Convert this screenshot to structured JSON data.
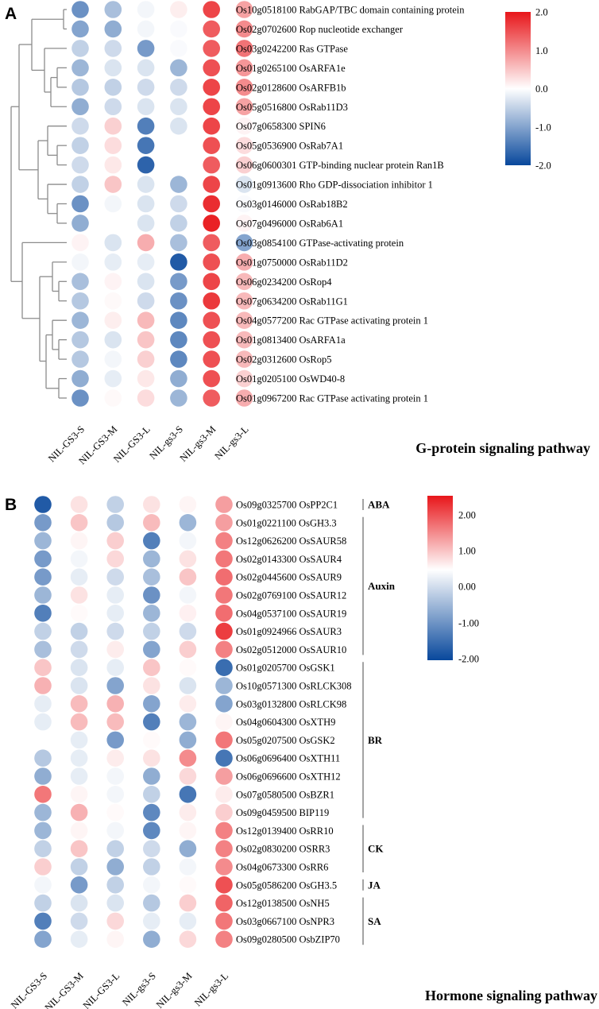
{
  "colors": {
    "low": "#08489c",
    "mid": "#ffffff",
    "high": "#e8161a",
    "dendrogram": "#8c8c8c",
    "group_line": "#666666"
  },
  "chart_data": [
    {
      "type": "heatmap",
      "panel": "A",
      "title": "G-protein signaling pathway",
      "columns": [
        "NIL-GS3-S",
        "NIL-GS3-M",
        "NIL-GS3-L",
        "NIL-gs3-S",
        "NIL-gs3-M",
        "NIL-gs3-L"
      ],
      "rows": [
        "Os10g0518100 RabGAP/TBC domain containing protein",
        "Os02g0702600 Rop nucleotide exchanger",
        "Os03g0242200 Ras GTPase",
        "Os01g0265100 OsARFA1e",
        "Os02g0128600 OsARFB1b",
        "Os05g0516800 OsRab11D3",
        "Os07g0658300 SPIN6",
        "Os05g0536900 OsRab7A1",
        "Os06g0600301 GTP-binding nuclear protein Ran1B",
        "Os01g0913600 Rho GDP-dissociation inhibitor 1",
        "Os03g0146000 OsRab18B2",
        "Os07g0496000 OsRab6A1",
        "Os03g0854100 GTPase-activating protein",
        "Os01g0750000 OsRab11D2",
        "Os06g0234200 OsRop4",
        "Os07g0634200 OsRab11G1",
        "Os04g0577200 Rac GTPase activating protein 1",
        "Os01g0813400 OsARFA1a",
        "Os02g0312600 OsRop5",
        "Os01g0205100 OsWD40-8",
        "Os01g0967200 Rac GTPase activating protein 1"
      ],
      "values": [
        [
          -1.2,
          -0.7,
          -0.1,
          0.15,
          1.6,
          0.8
        ],
        [
          -1.0,
          -0.9,
          -0.1,
          -0.05,
          1.4,
          1.0
        ],
        [
          -0.5,
          -0.4,
          -1.1,
          -0.05,
          1.4,
          1.2
        ],
        [
          -0.8,
          -0.3,
          -0.3,
          -0.8,
          1.5,
          0.9
        ],
        [
          -0.6,
          -0.5,
          -0.4,
          -0.4,
          1.6,
          1.0
        ],
        [
          -0.9,
          -0.4,
          -0.3,
          -0.3,
          1.6,
          0.8
        ],
        [
          -0.4,
          0.4,
          -1.4,
          -0.3,
          1.6,
          0.1
        ],
        [
          -0.5,
          0.3,
          -1.5,
          0.0,
          1.5,
          0.3
        ],
        [
          -0.4,
          0.2,
          -1.7,
          0.0,
          1.4,
          0.4
        ],
        [
          -0.5,
          0.5,
          -0.3,
          -0.8,
          1.6,
          -0.3
        ],
        [
          -1.2,
          -0.1,
          -0.3,
          -0.4,
          1.8,
          -0.05
        ],
        [
          -0.9,
          0.0,
          -0.3,
          -0.5,
          1.9,
          0.1
        ],
        [
          0.1,
          -0.3,
          0.7,
          -0.7,
          1.4,
          -1.0
        ],
        [
          -0.1,
          -0.2,
          -0.2,
          -1.8,
          1.5,
          0.7
        ],
        [
          -0.7,
          0.1,
          -0.3,
          -1.1,
          1.6,
          0.6
        ],
        [
          -0.6,
          0.05,
          -0.4,
          -1.2,
          1.7,
          0.6
        ],
        [
          -0.8,
          0.15,
          0.6,
          -1.3,
          1.5,
          0.6
        ],
        [
          -0.6,
          -0.3,
          0.5,
          -1.3,
          1.5,
          0.6
        ],
        [
          -0.6,
          -0.1,
          0.4,
          -1.3,
          1.5,
          0.6
        ],
        [
          -0.9,
          -0.2,
          0.2,
          -0.9,
          1.5,
          0.4
        ],
        [
          -1.2,
          0.05,
          0.3,
          -0.8,
          1.4,
          0.7
        ]
      ],
      "colorbar": {
        "range": [
          -2.0,
          2.0
        ],
        "ticks": [
          "2.0",
          "1.0",
          "0.0",
          "-1.0",
          "-2.0"
        ]
      },
      "dendrogram": "row clustering (left)"
    },
    {
      "type": "heatmap",
      "panel": "B",
      "title": "Hormone signaling pathway",
      "columns": [
        "NIL-GS3-S",
        "NIL-GS3-M",
        "NIL-GS3-L",
        "NIL-gs3-S",
        "NIL-gs3-M",
        "NIL-gs3-L"
      ],
      "rows": [
        "Os09g0325700 OsPP2C1",
        "Os01g0221100 OsGH3.3",
        "Os12g0626200 OsSAUR58",
        "Os02g0143300 OsSAUR4",
        "Os02g0445600 OsSAUR9",
        "Os02g0769100 OsSAUR12",
        "Os04g0537100 OsSAUR19",
        "Os01g0924966 OsSAUR3",
        "Os02g0512000 OsSAUR10",
        "Os01g0205700 OsGSK1",
        "Os10g0571300 OsRLCK308",
        "Os03g0132800 OsRLCK98",
        "Os04g0604300 OsXTH9",
        "Os05g0207500 OsGSK2",
        "Os06g0696400 OsXTH11",
        "Os06g0696600 OsXTH12",
        "Os07g0580500 OsBZR1",
        "Os09g0459500 BIP119",
        "Os12g0139400 OsRR10",
        "Os02g0830200 OSRR3",
        "Os04g0673300 OsRR6",
        "Os05g0586200 OsGH3.5",
        "Os12g0138500 OsNH5",
        "Os03g0667100 OsNPR3",
        "Os09g0280500 OsbZIP70"
      ],
      "values": [
        [
          -1.8,
          0.3,
          -0.5,
          0.3,
          0.1,
          1.0
        ],
        [
          -1.1,
          0.6,
          -0.6,
          0.7,
          -0.8,
          1.0
        ],
        [
          -0.8,
          0.1,
          0.5,
          -1.4,
          -0.1,
          1.3
        ],
        [
          -1.1,
          -0.1,
          0.4,
          -0.8,
          0.3,
          1.4
        ],
        [
          -1.1,
          -0.2,
          -0.4,
          -0.7,
          0.6,
          1.5
        ],
        [
          -0.8,
          0.3,
          -0.2,
          -1.2,
          -0.1,
          1.4
        ],
        [
          -1.4,
          0.05,
          -0.2,
          -0.8,
          0.15,
          1.5
        ],
        [
          -0.5,
          -0.5,
          -0.4,
          -0.5,
          -0.4,
          2.0
        ],
        [
          -0.7,
          -0.4,
          0.2,
          -1.0,
          0.5,
          1.3
        ],
        [
          0.6,
          -0.3,
          -0.2,
          0.6,
          0.05,
          -1.6
        ],
        [
          0.8,
          -0.3,
          -1.0,
          0.3,
          -0.3,
          -0.8
        ],
        [
          -0.2,
          0.7,
          0.8,
          -1.0,
          0.2,
          -1.0
        ],
        [
          -0.2,
          0.7,
          0.7,
          -1.4,
          -0.8,
          0.1
        ],
        [
          0.0,
          -0.2,
          -1.1,
          0.05,
          -0.9,
          1.4
        ],
        [
          -0.6,
          -0.2,
          0.2,
          0.3,
          1.2,
          -1.5
        ],
        [
          -0.9,
          -0.2,
          -0.1,
          -0.9,
          0.4,
          1.0
        ],
        [
          1.4,
          0.1,
          -0.1,
          -0.5,
          -1.5,
          0.2
        ],
        [
          -0.8,
          0.8,
          0.05,
          -1.3,
          0.2,
          0.5
        ],
        [
          -0.8,
          0.1,
          -0.1,
          -1.3,
          0.1,
          1.3
        ],
        [
          -0.5,
          0.6,
          -0.5,
          -0.4,
          -0.9,
          1.3
        ],
        [
          0.5,
          -0.5,
          -0.9,
          -0.5,
          -0.1,
          1.2
        ],
        [
          -0.1,
          -1.1,
          -0.5,
          -0.1,
          0.05,
          1.8
        ],
        [
          -0.5,
          -0.3,
          -0.3,
          -0.6,
          0.5,
          1.6
        ],
        [
          -1.4,
          -0.4,
          0.4,
          -0.2,
          -0.2,
          1.4
        ],
        [
          -1.0,
          -0.2,
          0.1,
          -0.9,
          0.4,
          1.3
        ]
      ],
      "groups": [
        {
          "label": "ABA",
          "rows": [
            0,
            0
          ]
        },
        {
          "label": "Auxin",
          "rows": [
            1,
            8
          ]
        },
        {
          "label": "BR",
          "rows": [
            9,
            17
          ]
        },
        {
          "label": "CK",
          "rows": [
            18,
            20
          ]
        },
        {
          "label": "JA",
          "rows": [
            21,
            21
          ]
        },
        {
          "label": "SA",
          "rows": [
            22,
            24
          ]
        }
      ],
      "colorbar": {
        "range": [
          -2.0,
          2.4
        ],
        "ticks": [
          "2.00",
          "1.00",
          "0.00",
          "-1.00",
          "-2.00"
        ]
      }
    }
  ]
}
